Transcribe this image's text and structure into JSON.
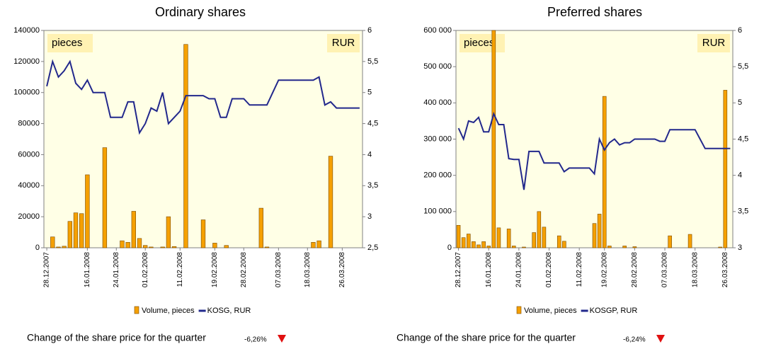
{
  "chart_data": [
    {
      "type": "bar_line",
      "title": "Ordinary shares",
      "ylabel": "pieces",
      "y2label": "RUR",
      "categories": [
        "28.12.2007",
        null,
        null,
        null,
        null,
        null,
        null,
        "16.01.2008",
        null,
        null,
        null,
        null,
        "24.01.2008",
        null,
        null,
        null,
        null,
        "01.02.2008",
        null,
        null,
        null,
        null,
        null,
        "11.02.2008",
        null,
        null,
        null,
        null,
        null,
        "19.02.2008",
        null,
        null,
        null,
        null,
        "28.02.2008",
        null,
        null,
        null,
        null,
        null,
        "07.03.2008",
        null,
        null,
        null,
        null,
        "18.03.2008",
        null,
        null,
        null,
        null,
        null,
        "26.03.2008",
        null,
        null,
        null
      ],
      "series": [
        {
          "name": "Volume, pieces",
          "color": "#f5a000",
          "axis": "y",
          "values": [
            0,
            7000,
            500,
            1000,
            17000,
            22500,
            22000,
            47000,
            0,
            0,
            64500,
            0,
            0,
            4500,
            3500,
            23500,
            6000,
            1500,
            500,
            0,
            500,
            20000,
            800,
            0,
            131000,
            0,
            0,
            18000,
            0,
            3000,
            0,
            1500,
            0,
            0,
            0,
            0,
            0,
            25500,
            500,
            0,
            0,
            0,
            0,
            0,
            0,
            0,
            3500,
            4500,
            0,
            59000,
            0,
            0,
            0,
            0,
            0
          ]
        },
        {
          "name": "KOSG, RUR",
          "color": "#22288c",
          "axis": "y2",
          "values": [
            5.1,
            5.5,
            5.25,
            5.35,
            5.5,
            5.15,
            5.05,
            5.2,
            5.0,
            5.0,
            5.0,
            4.6,
            4.6,
            4.6,
            4.85,
            4.85,
            4.35,
            4.5,
            4.75,
            4.7,
            5.0,
            4.5,
            4.6,
            4.7,
            4.95,
            4.95,
            4.95,
            4.95,
            4.9,
            4.9,
            4.6,
            4.6,
            4.9,
            4.9,
            4.9,
            4.8,
            4.8,
            4.8,
            4.8,
            5.0,
            5.2,
            5.2,
            5.2,
            5.2,
            5.2,
            5.2,
            5.2,
            5.25,
            4.8,
            4.85,
            4.75,
            4.75,
            4.75,
            4.75,
            4.75
          ]
        }
      ],
      "ylim": [
        0,
        140000
      ],
      "yticks": [
        0,
        20000,
        40000,
        60000,
        80000,
        100000,
        120000,
        140000
      ],
      "y2lim": [
        2.5,
        6
      ],
      "y2ticks": [
        {
          "value": 2.5,
          "label": "2,5"
        },
        3,
        {
          "value": 3.5,
          "label": "3,5"
        },
        4,
        {
          "value": 4.5,
          "label": "4,5"
        },
        5,
        {
          "value": 5.5,
          "label": "5,5"
        },
        6
      ],
      "annotations": [
        "Change of the share price for the quarter",
        "-6,26%"
      ]
    },
    {
      "type": "bar_line",
      "title": "Preferred shares",
      "ylabel": "pieces",
      "y2label": "RUR",
      "categories": [
        "28.12.2007",
        null,
        null,
        null,
        null,
        null,
        "16.01.2008",
        null,
        null,
        null,
        null,
        null,
        "24.01.2008",
        null,
        null,
        null,
        null,
        null,
        "01.02.2008",
        null,
        null,
        null,
        null,
        null,
        "11.02.2008",
        null,
        null,
        null,
        null,
        "19.02.2008",
        null,
        null,
        null,
        null,
        null,
        "28.02.2008",
        null,
        null,
        null,
        null,
        null,
        "07.03.2008",
        null,
        null,
        null,
        null,
        null,
        "18.03.2008",
        null,
        null,
        null,
        null,
        null,
        "26.03.2008",
        null
      ],
      "series": [
        {
          "name": "Volume, pieces",
          "color": "#f5a000",
          "axis": "y",
          "values": [
            62000,
            28000,
            38000,
            17000,
            8000,
            17000,
            5000,
            600000,
            55000,
            0,
            52000,
            5000,
            0,
            2000,
            0,
            42000,
            100000,
            57000,
            0,
            0,
            33000,
            18000,
            0,
            0,
            0,
            0,
            0,
            67000,
            93000,
            418000,
            5000,
            0,
            0,
            5000,
            0,
            3000,
            0,
            0,
            0,
            0,
            0,
            0,
            33000,
            0,
            0,
            0,
            37000,
            0,
            0,
            0,
            0,
            0,
            2000,
            435000,
            0
          ]
        },
        {
          "name": "KOSGP, RUR",
          "color": "#22288c",
          "axis": "y2",
          "values": [
            4.65,
            4.5,
            4.75,
            4.73,
            4.8,
            4.6,
            4.6,
            4.85,
            4.7,
            4.7,
            4.23,
            4.22,
            4.22,
            3.8,
            4.33,
            4.33,
            4.33,
            4.17,
            4.17,
            4.17,
            4.17,
            4.05,
            4.1,
            4.1,
            4.1,
            4.1,
            4.1,
            4.02,
            4.5,
            4.35,
            4.45,
            4.5,
            4.42,
            4.45,
            4.45,
            4.5,
            4.5,
            4.5,
            4.5,
            4.5,
            4.47,
            4.47,
            4.63,
            4.63,
            4.63,
            4.63,
            4.63,
            4.63,
            4.5,
            4.37,
            4.37,
            4.37,
            4.37,
            4.37,
            4.37
          ]
        }
      ],
      "ylim": [
        0,
        600000
      ],
      "yticks": [
        0,
        {
          "value": 100000,
          "label": "100 000"
        },
        {
          "value": 200000,
          "label": "200 000"
        },
        {
          "value": 300000,
          "label": "300 000"
        },
        {
          "value": 400000,
          "label": "400 000"
        },
        {
          "value": 500000,
          "label": "500 000"
        },
        {
          "value": 600000,
          "label": "600 000"
        }
      ],
      "y2lim": [
        3,
        6
      ],
      "y2ticks": [
        3,
        {
          "value": 3.5,
          "label": "3,5"
        },
        4,
        {
          "value": 4.5,
          "label": "4,5"
        },
        5,
        {
          "value": 5.5,
          "label": "5,5"
        },
        6
      ],
      "annotations": [
        "Change of the share price for the quarter",
        "-6,24%"
      ]
    }
  ]
}
